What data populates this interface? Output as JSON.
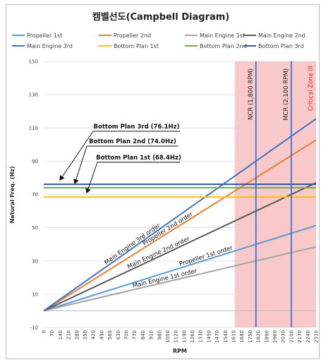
{
  "chart_data": {
    "type": "line",
    "title": "캠벨선도(Campbell Diagram)",
    "xlabel": "RPM",
    "ylabel": "Natural Freq. (Hz)",
    "xlim": [
      0,
      2310
    ],
    "ylim": [
      -10,
      150
    ],
    "x_ticks": [
      "0",
      "70",
      "140",
      "210",
      "280",
      "350",
      "420",
      "490",
      "560",
      "630",
      "700",
      "770",
      "840",
      "910",
      "980",
      "1050",
      "1120",
      "1190",
      "1260",
      "1330",
      "1400",
      "1470",
      "1540",
      "1610",
      "1680",
      "1750",
      "1820",
      "1890",
      "1960",
      "2030",
      "2100",
      "2170",
      "2240",
      "2310"
    ],
    "y_ticks": [
      -10,
      10,
      30,
      50,
      70,
      90,
      110,
      130,
      150
    ],
    "legend_position": "top",
    "series": [
      {
        "name": "Propeller 1st",
        "color": "#5b9bd5",
        "kind": "line",
        "x": [
          0,
          2310
        ],
        "y": [
          0,
          51.3
        ]
      },
      {
        "name": "Propeller 2nd",
        "color": "#ed7d31",
        "kind": "line",
        "x": [
          0,
          2310
        ],
        "y": [
          0,
          102.7
        ]
      },
      {
        "name": "Main Engine 1st",
        "color": "#a5a5a5",
        "kind": "line",
        "x": [
          0,
          2310
        ],
        "y": [
          0,
          38.5
        ]
      },
      {
        "name": "Main Engine 2nd",
        "color": "#595959",
        "kind": "line",
        "x": [
          0,
          2310
        ],
        "y": [
          0,
          77.0
        ]
      },
      {
        "name": "Main Engine 3rd",
        "color": "#4472c4",
        "kind": "line",
        "x": [
          0,
          2310
        ],
        "y": [
          0,
          115.5
        ]
      },
      {
        "name": "Bottom Plan 1st",
        "color": "#ffc000",
        "kind": "hline",
        "y": 68.4
      },
      {
        "name": "Bottom Plan 2nd",
        "color": "#70ad47",
        "kind": "hline",
        "y": 74.0
      },
      {
        "name": "Bottom Plan 3rd",
        "color": "#2f5597",
        "kind": "hline",
        "y": 76.1
      }
    ],
    "line_labels": [
      {
        "text": "Main Engine 3rd order",
        "series": 4,
        "x": 760
      },
      {
        "text": "Propeller 2nd order",
        "series": 1,
        "x": 1060
      },
      {
        "text": "Main Engine 2nd order",
        "series": 3,
        "x": 980
      },
      {
        "text": "Propeller 1st order",
        "series": 0,
        "x": 1380
      },
      {
        "text": "Main Engine 1st order",
        "series": 2,
        "x": 1030
      }
    ],
    "callouts": [
      {
        "text": "Bottom Plan 3rd (76.1Hz)",
        "y": 76.1
      },
      {
        "text": "Bottom Plan 2nd (74.0Hz)",
        "y": 74.0
      },
      {
        "text": "Bottom Plan 1st (68.4Hz)",
        "y": 68.4
      }
    ],
    "vertical_markers": [
      {
        "label": "NCR (1,800 RPM)",
        "x": 1800,
        "color": "#2e64c8"
      },
      {
        "label": "MCR (2,100 RPM)",
        "x": 2100,
        "color": "#2e64c8"
      }
    ],
    "zone": {
      "label": "Critical Zone III",
      "x_from": 1620,
      "x_to": 2310,
      "color": "#f9c8c8"
    }
  }
}
